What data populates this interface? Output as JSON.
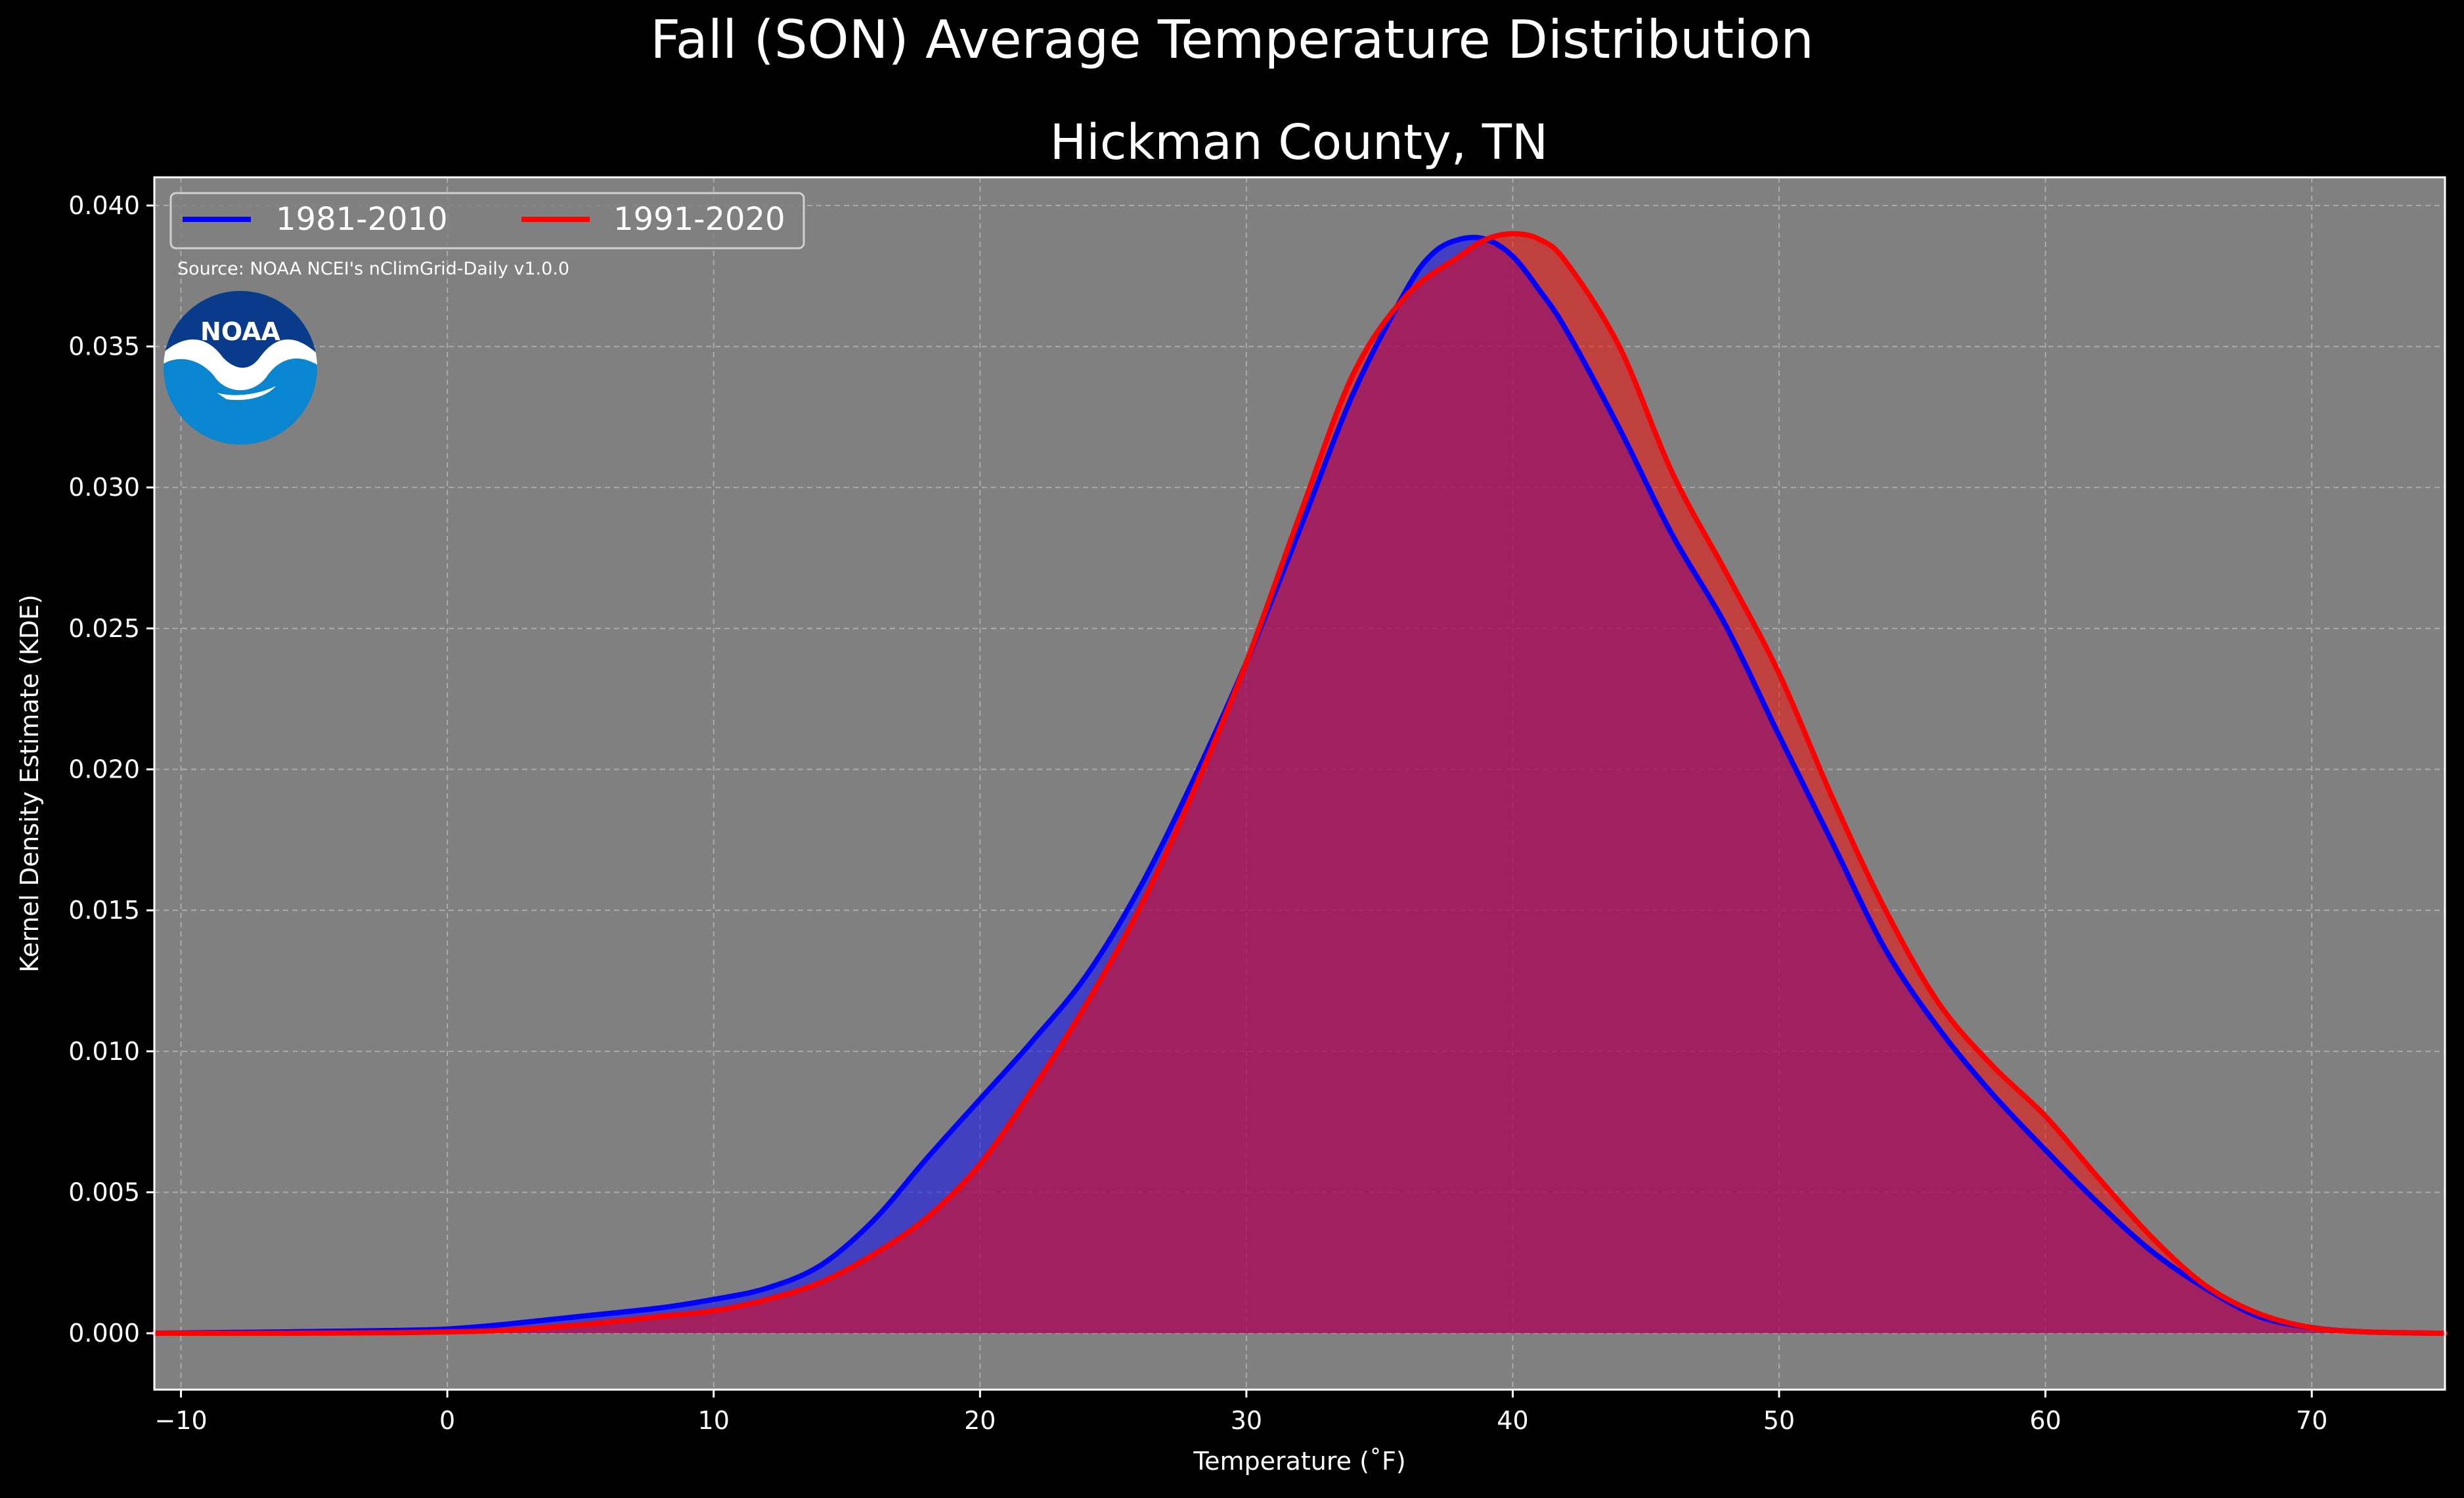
{
  "colors": {
    "background": "#000000",
    "plot_background": "#808080",
    "grid": "#c8c8c8",
    "text": "#ffffff",
    "series_1981_2010": "#0000ff",
    "series_1991_2020": "#ff0000",
    "noaa_dark_blue": "#0a3a8a",
    "noaa_light_blue": "#0a86d0"
  },
  "icons": {
    "logo": "noaa-logo-icon"
  },
  "source_note": "Source: NOAA NCEI's nClimGrid-Daily v1.0.0",
  "logo_text": "NOAA",
  "chart_data": {
    "type": "area",
    "title": "Fall (SON) Average Temperature Distribution",
    "subtitle": "Hickman County, TN",
    "xlabel": "Temperature ($^\\circ$F)",
    "xlabel_display": "Temperature (˚F)",
    "ylabel": "Kernel Density Estimate (KDE)",
    "xlim": [
      -11,
      75
    ],
    "ylim": [
      -0.002,
      0.041
    ],
    "xticks": [
      -10,
      0,
      10,
      20,
      30,
      40,
      50,
      60,
      70
    ],
    "xtick_labels": [
      "−10",
      "0",
      "10",
      "20",
      "30",
      "40",
      "50",
      "60",
      "70"
    ],
    "yticks": [
      0.0,
      0.005,
      0.01,
      0.015,
      0.02,
      0.025,
      0.03,
      0.035,
      0.04
    ],
    "ytick_labels": [
      "0.000",
      "0.005",
      "0.010",
      "0.015",
      "0.020",
      "0.025",
      "0.030",
      "0.035",
      "0.040"
    ],
    "grid": true,
    "legend_position": "top-left",
    "series": [
      {
        "name": "1981-2010",
        "color": "#0000ff",
        "x": [
          -11,
          -6,
          -2,
          0,
          2,
          5,
          8,
          10,
          12,
          14,
          16,
          18,
          20,
          22,
          24,
          26,
          28,
          30,
          32,
          34,
          36,
          37,
          38,
          39,
          40,
          41,
          42,
          44,
          46,
          48,
          50,
          52,
          54,
          56,
          58,
          60,
          62,
          64,
          66,
          68,
          70,
          72,
          75
        ],
        "y": [
          0.0,
          5e-05,
          0.0001,
          0.00015,
          0.0003,
          0.0006,
          0.0009,
          0.0012,
          0.0016,
          0.0024,
          0.004,
          0.0062,
          0.0083,
          0.0104,
          0.0127,
          0.0158,
          0.0196,
          0.0238,
          0.0285,
          0.0333,
          0.037,
          0.0383,
          0.0388,
          0.0388,
          0.0382,
          0.037,
          0.0356,
          0.0321,
          0.0283,
          0.0251,
          0.0212,
          0.0174,
          0.0136,
          0.0108,
          0.0085,
          0.0065,
          0.0046,
          0.0029,
          0.0016,
          0.0006,
          0.0002,
          5e-05,
          0.0
        ]
      },
      {
        "name": "1991-2020",
        "color": "#ff0000",
        "x": [
          -11,
          -6,
          -2,
          0,
          2,
          5,
          8,
          10,
          12,
          14,
          16,
          18,
          20,
          22,
          24,
          26,
          28,
          30,
          32,
          34,
          36,
          38,
          39,
          40,
          41,
          42,
          44,
          46,
          48,
          50,
          52,
          54,
          56,
          58,
          60,
          62,
          64,
          66,
          68,
          70,
          72,
          75
        ],
        "y": [
          0.0,
          0.0,
          2e-05,
          5e-05,
          0.0001,
          0.0003,
          0.0006,
          0.0008,
          0.0012,
          0.0018,
          0.0028,
          0.0041,
          0.006,
          0.0087,
          0.0117,
          0.0151,
          0.0192,
          0.0238,
          0.029,
          0.034,
          0.0368,
          0.0382,
          0.0388,
          0.039,
          0.0388,
          0.038,
          0.035,
          0.0305,
          0.027,
          0.0234,
          0.019,
          0.015,
          0.0117,
          0.0095,
          0.0077,
          0.0055,
          0.0034,
          0.0017,
          0.0007,
          0.0002,
          5e-05,
          0.0
        ]
      }
    ]
  }
}
